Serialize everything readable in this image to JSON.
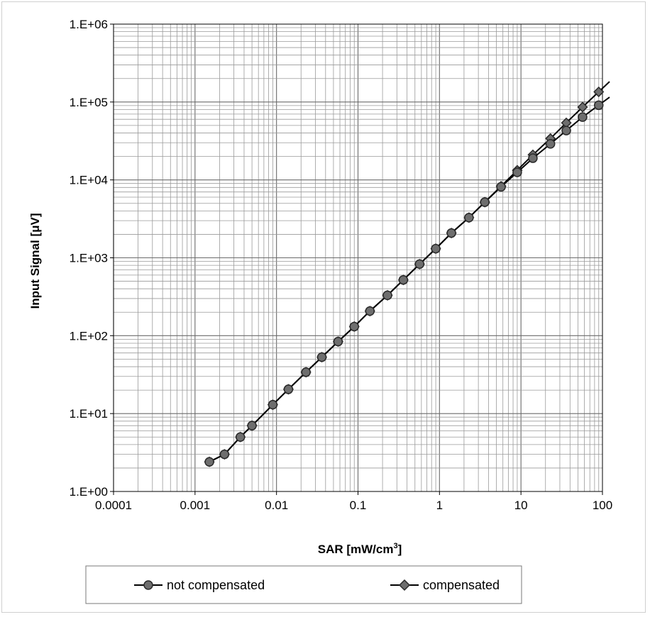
{
  "chart_data": {
    "type": "line",
    "title": "",
    "xlabel": "SAR [mW/cm",
    "xlabel_sup": "3",
    "xlabel_end": "]",
    "ylabel": "Input Signal [μV]",
    "xscale": "log",
    "yscale": "log",
    "xlim": [
      0.0001,
      100
    ],
    "ylim": [
      1,
      1000000
    ],
    "grid": true,
    "legend_position": "bottom",
    "x_tick_labels": [
      "0.0001",
      "0.001",
      "0.01",
      "0.1",
      "1",
      "10",
      "100"
    ],
    "y_tick_labels": [
      "1.E+00",
      "1.E+01",
      "1.E+02",
      "1.E+03",
      "1.E+04",
      "1.E+05",
      "1.E+06"
    ],
    "series": [
      {
        "name": "not compensated",
        "marker": "circle",
        "color": "#6e6e6e",
        "x": [
          0.0015,
          0.0023,
          0.0036,
          0.005,
          0.009,
          0.014,
          0.023,
          0.036,
          0.057,
          0.09,
          0.14,
          0.23,
          0.36,
          0.57,
          0.9,
          1.4,
          2.3,
          3.6,
          5.7,
          9,
          14,
          23,
          36,
          57,
          90
        ],
        "y": [
          2.4,
          3.0,
          5.0,
          7.0,
          13,
          20.5,
          34,
          53,
          84,
          131,
          207,
          330,
          520,
          830,
          1310,
          2080,
          3280,
          5180,
          8150,
          12500,
          19000,
          29000,
          43000,
          64000,
          91000
        ]
      },
      {
        "name": "compensated",
        "marker": "diamond",
        "color": "#6e6e6e",
        "x": [
          0.0015,
          0.0023,
          0.0036,
          0.005,
          0.009,
          0.014,
          0.023,
          0.036,
          0.057,
          0.09,
          0.14,
          0.23,
          0.36,
          0.57,
          0.9,
          1.4,
          2.3,
          3.6,
          5.7,
          9,
          14,
          23,
          36,
          57,
          90
        ],
        "y": [
          2.4,
          3.0,
          5.0,
          7.0,
          13,
          20.5,
          34,
          53,
          84,
          131,
          207,
          330,
          520,
          830,
          1310,
          2080,
          3280,
          5180,
          8300,
          13300,
          21000,
          34000,
          54000,
          86000,
          135000
        ]
      }
    ]
  }
}
